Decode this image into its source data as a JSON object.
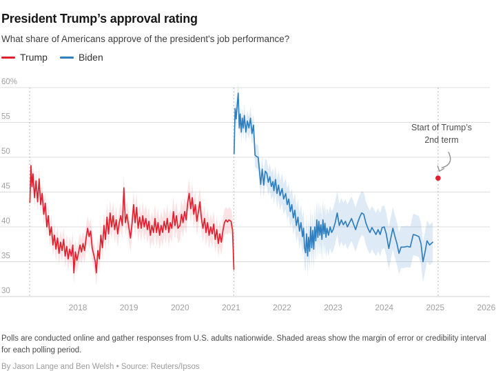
{
  "chart_data": {
    "type": "line",
    "title": "President Trump’s approval rating",
    "subtitle": "What share of Americans approve of the president's job performance?",
    "xlabel": "",
    "ylabel": "",
    "xlim": [
      2017.0,
      2026.1
    ],
    "ylim": [
      30,
      60
    ],
    "grid": true,
    "legend_position": "top-left",
    "x_ticks": [
      {
        "label": "2018",
        "value": 2018
      },
      {
        "label": "2019",
        "value": 2019
      },
      {
        "label": "2020",
        "value": 2020
      },
      {
        "label": "2021",
        "value": 2021
      },
      {
        "label": "2022",
        "value": 2022
      },
      {
        "label": "2023",
        "value": 2023
      },
      {
        "label": "2024",
        "value": 2024
      },
      {
        "label": "2025",
        "value": 2025
      },
      {
        "label": "2026",
        "value": 2026
      }
    ],
    "y_ticks": [
      {
        "label": "60%",
        "value": 60
      },
      {
        "label": "55",
        "value": 55
      },
      {
        "label": "50",
        "value": 50
      },
      {
        "label": "45",
        "value": 45
      },
      {
        "label": "40",
        "value": 40
      },
      {
        "label": "35",
        "value": 35
      },
      {
        "label": "30",
        "value": 30
      }
    ],
    "term_start_lines": [
      2017.055,
      2021.055,
      2025.055
    ],
    "colors": {
      "grid": "#dddddd",
      "axis": "#d0d0d0",
      "dotted_line": "#c2c2c2",
      "tick_label": "#a0a0a0",
      "arrow": "#8f8f8f"
    },
    "annotation": {
      "line1": "Start of Trump’s",
      "line2": "2nd term",
      "x": 2025.055,
      "y": 47,
      "dot_color": "#e0202e"
    },
    "series": [
      {
        "name": "Trump",
        "color": "#e0202e",
        "band_color": "rgba(224,32,46,0.13)",
        "margins": [
          [
            2017.06,
            1.5
          ],
          [
            2018.5,
            1.9
          ],
          [
            2020.0,
            2.1
          ],
          [
            2021.055,
            1.8
          ]
        ],
        "points": [
          [
            2017.06,
            43.5
          ],
          [
            2017.08,
            48.8
          ],
          [
            2017.1,
            45.8
          ],
          [
            2017.12,
            47.6
          ],
          [
            2017.15,
            44.2
          ],
          [
            2017.18,
            46.6
          ],
          [
            2017.21,
            43.6
          ],
          [
            2017.24,
            46.9
          ],
          [
            2017.27,
            43.2
          ],
          [
            2017.3,
            44.8
          ],
          [
            2017.33,
            41.8
          ],
          [
            2017.36,
            43.4
          ],
          [
            2017.39,
            40.0
          ],
          [
            2017.42,
            41.6
          ],
          [
            2017.45,
            38.8
          ],
          [
            2017.48,
            40.0
          ],
          [
            2017.51,
            37.4
          ],
          [
            2017.54,
            38.8
          ],
          [
            2017.57,
            36.8
          ],
          [
            2017.6,
            38.4
          ],
          [
            2017.63,
            36.2
          ],
          [
            2017.66,
            37.8
          ],
          [
            2017.69,
            36.6
          ],
          [
            2017.72,
            38.2
          ],
          [
            2017.75,
            35.8
          ],
          [
            2017.78,
            37.2
          ],
          [
            2017.81,
            35.4
          ],
          [
            2017.84,
            36.8
          ],
          [
            2017.87,
            35.8
          ],
          [
            2017.9,
            37.4
          ],
          [
            2017.92,
            33.4
          ],
          [
            2017.95,
            36.4
          ],
          [
            2017.98,
            35.2
          ],
          [
            2018.01,
            36.2
          ],
          [
            2018.04,
            37.4
          ],
          [
            2018.07,
            36.4
          ],
          [
            2018.1,
            37.6
          ],
          [
            2018.13,
            36.6
          ],
          [
            2018.16,
            38.4
          ],
          [
            2018.19,
            39.8
          ],
          [
            2018.22,
            38.6
          ],
          [
            2018.25,
            39.4
          ],
          [
            2018.28,
            37.0
          ],
          [
            2018.31,
            36.0
          ],
          [
            2018.34,
            35.0
          ],
          [
            2018.36,
            33.4
          ],
          [
            2018.39,
            36.6
          ],
          [
            2018.42,
            35.4
          ],
          [
            2018.45,
            38.8
          ],
          [
            2018.48,
            37.0
          ],
          [
            2018.51,
            40.2
          ],
          [
            2018.54,
            38.2
          ],
          [
            2018.57,
            41.4
          ],
          [
            2018.6,
            39.0
          ],
          [
            2018.63,
            42.0
          ],
          [
            2018.66,
            40.0
          ],
          [
            2018.69,
            41.6
          ],
          [
            2018.72,
            39.6
          ],
          [
            2018.75,
            41.0
          ],
          [
            2018.78,
            39.0
          ],
          [
            2018.81,
            40.6
          ],
          [
            2018.84,
            41.6
          ],
          [
            2018.87,
            40.2
          ],
          [
            2018.9,
            45.6
          ],
          [
            2018.93,
            40.6
          ],
          [
            2018.96,
            41.8
          ],
          [
            2019.0,
            39.8
          ],
          [
            2019.03,
            38.4
          ],
          [
            2019.06,
            40.4
          ],
          [
            2019.09,
            43.2
          ],
          [
            2019.12,
            40.6
          ],
          [
            2019.15,
            42.8
          ],
          [
            2019.18,
            39.8
          ],
          [
            2019.21,
            41.4
          ],
          [
            2019.24,
            39.8
          ],
          [
            2019.27,
            41.6
          ],
          [
            2019.3,
            40.0
          ],
          [
            2019.33,
            41.2
          ],
          [
            2019.36,
            39.6
          ],
          [
            2019.39,
            40.8
          ],
          [
            2019.42,
            38.8
          ],
          [
            2019.45,
            40.2
          ],
          [
            2019.48,
            39.2
          ],
          [
            2019.51,
            41.2
          ],
          [
            2019.54,
            39.2
          ],
          [
            2019.57,
            40.6
          ],
          [
            2019.6,
            38.8
          ],
          [
            2019.63,
            40.2
          ],
          [
            2019.66,
            39.2
          ],
          [
            2019.69,
            40.8
          ],
          [
            2019.72,
            39.6
          ],
          [
            2019.75,
            41.2
          ],
          [
            2019.78,
            39.2
          ],
          [
            2019.81,
            40.6
          ],
          [
            2019.84,
            39.8
          ],
          [
            2019.87,
            42.2
          ],
          [
            2019.9,
            40.2
          ],
          [
            2019.93,
            41.6
          ],
          [
            2019.96,
            39.8
          ],
          [
            2020.0,
            40.2
          ],
          [
            2020.03,
            41.8
          ],
          [
            2020.06,
            40.6
          ],
          [
            2020.09,
            42.2
          ],
          [
            2020.12,
            41.0
          ],
          [
            2020.15,
            43.4
          ],
          [
            2020.18,
            44.8
          ],
          [
            2020.21,
            42.6
          ],
          [
            2020.24,
            44.2
          ],
          [
            2020.27,
            41.8
          ],
          [
            2020.3,
            43.2
          ],
          [
            2020.33,
            40.8
          ],
          [
            2020.36,
            42.2
          ],
          [
            2020.39,
            43.6
          ],
          [
            2020.42,
            41.2
          ],
          [
            2020.45,
            39.8
          ],
          [
            2020.48,
            41.2
          ],
          [
            2020.51,
            39.2
          ],
          [
            2020.54,
            40.6
          ],
          [
            2020.57,
            38.8
          ],
          [
            2020.6,
            40.0
          ],
          [
            2020.63,
            39.0
          ],
          [
            2020.66,
            40.4
          ],
          [
            2020.69,
            38.2
          ],
          [
            2020.72,
            39.6
          ],
          [
            2020.75,
            37.6
          ],
          [
            2020.78,
            39.0
          ],
          [
            2020.81,
            37.8
          ],
          [
            2020.84,
            39.4
          ],
          [
            2020.87,
            40.6
          ],
          [
            2020.9,
            41.0
          ],
          [
            2020.93,
            40.7
          ],
          [
            2020.96,
            41.0
          ],
          [
            2021.0,
            40.8
          ],
          [
            2021.03,
            39.5
          ],
          [
            2021.055,
            33.9
          ]
        ]
      },
      {
        "name": "Biden",
        "color": "#2f7fbf",
        "band_color": "rgba(47,127,191,0.16)",
        "margins": [
          [
            2021.06,
            1.4
          ],
          [
            2021.9,
            2.0
          ],
          [
            2022.5,
            2.8
          ],
          [
            2023.3,
            3.2
          ],
          [
            2024.95,
            2.9
          ]
        ],
        "points": [
          [
            2021.06,
            50.5
          ],
          [
            2021.08,
            57.0
          ],
          [
            2021.1,
            55.5
          ],
          [
            2021.12,
            57.5
          ],
          [
            2021.14,
            59.2
          ],
          [
            2021.16,
            54.2
          ],
          [
            2021.18,
            56.2
          ],
          [
            2021.2,
            53.6
          ],
          [
            2021.22,
            55.6
          ],
          [
            2021.24,
            54.2
          ],
          [
            2021.26,
            56.0
          ],
          [
            2021.29,
            53.6
          ],
          [
            2021.32,
            55.2
          ],
          [
            2021.35,
            54.2
          ],
          [
            2021.38,
            55.6
          ],
          [
            2021.41,
            53.4
          ],
          [
            2021.44,
            54.6
          ],
          [
            2021.47,
            50.3
          ],
          [
            2021.5,
            50.1
          ],
          [
            2021.53,
            50.0
          ],
          [
            2021.56,
            47.8
          ],
          [
            2021.58,
            46.1
          ],
          [
            2021.61,
            48.3
          ],
          [
            2021.64,
            46.0
          ],
          [
            2021.67,
            48.0
          ],
          [
            2021.7,
            47.7
          ],
          [
            2021.73,
            46.4
          ],
          [
            2021.76,
            47.2
          ],
          [
            2021.79,
            45.8
          ],
          [
            2021.82,
            46.5
          ],
          [
            2021.84,
            45.2
          ],
          [
            2021.87,
            46.8
          ],
          [
            2021.9,
            44.8
          ],
          [
            2021.93,
            46.0
          ],
          [
            2021.96,
            44.5
          ],
          [
            2022.0,
            45.5
          ],
          [
            2022.03,
            44.0
          ],
          [
            2022.07,
            44.8
          ],
          [
            2022.1,
            43.2
          ],
          [
            2022.13,
            44.0
          ],
          [
            2022.16,
            42.2
          ],
          [
            2022.19,
            43.2
          ],
          [
            2022.22,
            41.3
          ],
          [
            2022.25,
            42.4
          ],
          [
            2022.28,
            40.2
          ],
          [
            2022.31,
            41.4
          ],
          [
            2022.34,
            39.4
          ],
          [
            2022.37,
            40.6
          ],
          [
            2022.4,
            38.6
          ],
          [
            2022.42,
            39.8
          ],
          [
            2022.44,
            37.0
          ],
          [
            2022.46,
            36.3
          ],
          [
            2022.48,
            39.0
          ],
          [
            2022.5,
            35.8
          ],
          [
            2022.52,
            38.5
          ],
          [
            2022.54,
            36.5
          ],
          [
            2022.56,
            40.0
          ],
          [
            2022.58,
            37.0
          ],
          [
            2022.6,
            39.5
          ],
          [
            2022.62,
            36.8
          ],
          [
            2022.64,
            40.0
          ],
          [
            2022.66,
            38.0
          ],
          [
            2022.68,
            41.0
          ],
          [
            2022.7,
            38.5
          ],
          [
            2022.72,
            40.8
          ],
          [
            2022.74,
            38.8
          ],
          [
            2022.76,
            40.3
          ],
          [
            2022.78,
            38.2
          ],
          [
            2022.8,
            41.0
          ],
          [
            2022.82,
            39.0
          ],
          [
            2022.84,
            40.5
          ],
          [
            2022.86,
            38.5
          ],
          [
            2022.88,
            39.8
          ],
          [
            2022.91,
            38.8
          ],
          [
            2022.94,
            40.0
          ],
          [
            2022.97,
            39.2
          ],
          [
            2023.0,
            39.6
          ],
          [
            2023.04,
            40.6
          ],
          [
            2023.08,
            42.0
          ],
          [
            2023.12,
            40.2
          ],
          [
            2023.16,
            41.0
          ],
          [
            2023.2,
            40.3
          ],
          [
            2023.24,
            40.8
          ],
          [
            2023.28,
            40.0
          ],
          [
            2023.32,
            40.6
          ],
          [
            2023.36,
            41.2
          ],
          [
            2023.4,
            40.4
          ],
          [
            2023.44,
            39.6
          ],
          [
            2023.48,
            40.6
          ],
          [
            2023.52,
            41.4
          ],
          [
            2023.56,
            42.0
          ],
          [
            2023.6,
            41.8
          ],
          [
            2023.64,
            40.6
          ],
          [
            2023.68,
            39.8
          ],
          [
            2023.72,
            39.2
          ],
          [
            2023.76,
            39.9
          ],
          [
            2023.8,
            39.4
          ],
          [
            2023.84,
            38.9
          ],
          [
            2023.88,
            39.6
          ],
          [
            2023.92,
            38.9
          ],
          [
            2023.96,
            39.9
          ],
          [
            2024.0,
            40.0
          ],
          [
            2024.04,
            39.0
          ],
          [
            2024.09,
            36.9
          ],
          [
            2024.13,
            38.4
          ],
          [
            2024.17,
            39.8
          ],
          [
            2024.21,
            38.6
          ],
          [
            2024.25,
            37.6
          ],
          [
            2024.29,
            36.2
          ],
          [
            2024.33,
            37.1
          ],
          [
            2024.39,
            37.1
          ],
          [
            2024.45,
            37.2
          ],
          [
            2024.51,
            37.1
          ],
          [
            2024.57,
            38.9
          ],
          [
            2024.62,
            38.8
          ],
          [
            2024.68,
            38.6
          ],
          [
            2024.72,
            37.6
          ],
          [
            2024.76,
            35.0
          ],
          [
            2024.8,
            36.4
          ],
          [
            2024.84,
            38.0
          ],
          [
            2024.89,
            37.4
          ],
          [
            2024.95,
            37.8
          ]
        ]
      }
    ]
  },
  "footer": {
    "note": "Polls are conducted online and gather responses from U.S. adults nationwide. Shaded areas show the margin of error or credibility interval for each polling period.",
    "byline": "By Jason Lange and Ben Welsh • Source: Reuters/Ipsos"
  }
}
